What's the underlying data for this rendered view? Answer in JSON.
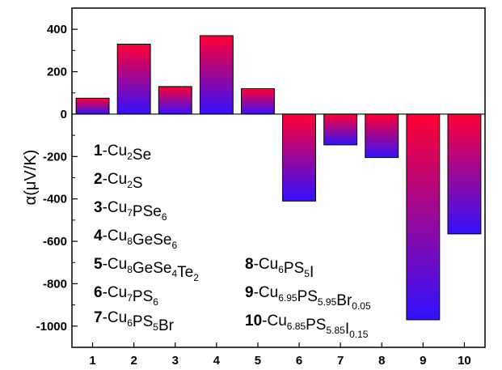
{
  "chart_data": {
    "type": "bar",
    "categories": [
      "1",
      "2",
      "3",
      "4",
      "5",
      "6",
      "7",
      "8",
      "9",
      "10"
    ],
    "values": [
      75,
      330,
      130,
      370,
      120,
      -410,
      -145,
      -205,
      -970,
      -565
    ],
    "ylabel": "α(μV/K)",
    "xlabel": "",
    "ylim": [
      -1100,
      500
    ],
    "yticks": [
      400,
      200,
      0,
      -200,
      -400,
      -600,
      -800,
      -1000
    ],
    "ytick_labels": [
      "400",
      "200",
      "0",
      "-200",
      "-400",
      "-600",
      "-800",
      "-1000"
    ],
    "grid": false,
    "bar_gradient": {
      "top": "#ff0033",
      "bottom": "#3311ff"
    },
    "legend": [
      {
        "id": "1",
        "formula": [
          [
            "Cu",
            ""
          ],
          [
            "2",
            "sub"
          ],
          [
            "Se",
            ""
          ]
        ]
      },
      {
        "id": "2",
        "formula": [
          [
            "Cu",
            ""
          ],
          [
            "2",
            "sub"
          ],
          [
            "S",
            ""
          ]
        ]
      },
      {
        "id": "3",
        "formula": [
          [
            "Cu",
            ""
          ],
          [
            "7",
            "sub"
          ],
          [
            "PSe",
            ""
          ],
          [
            "6",
            "sub"
          ]
        ]
      },
      {
        "id": "4",
        "formula": [
          [
            "Cu",
            ""
          ],
          [
            "8",
            "sub"
          ],
          [
            "GeSe",
            ""
          ],
          [
            "6",
            "sub"
          ]
        ]
      },
      {
        "id": "5",
        "formula": [
          [
            "Cu",
            ""
          ],
          [
            "8",
            "sub"
          ],
          [
            "GeSe",
            ""
          ],
          [
            "4",
            "sub"
          ],
          [
            "Te",
            ""
          ],
          [
            "2",
            "sub"
          ]
        ]
      },
      {
        "id": "6",
        "formula": [
          [
            "Cu",
            ""
          ],
          [
            "7",
            "sub"
          ],
          [
            "PS",
            ""
          ],
          [
            "6",
            "sub"
          ]
        ]
      },
      {
        "id": "7",
        "formula": [
          [
            "Cu",
            ""
          ],
          [
            "6",
            "sub"
          ],
          [
            "PS",
            ""
          ],
          [
            "5",
            "sub"
          ],
          [
            "Br",
            ""
          ]
        ]
      },
      {
        "id": "8",
        "formula": [
          [
            "Cu",
            ""
          ],
          [
            "6",
            "sub"
          ],
          [
            "PS",
            ""
          ],
          [
            "5",
            "sub"
          ],
          [
            "I",
            ""
          ]
        ]
      },
      {
        "id": "9",
        "formula": [
          [
            "Cu",
            ""
          ],
          [
            "6.95",
            "sub"
          ],
          [
            "PS",
            ""
          ],
          [
            "5.95",
            "sub"
          ],
          [
            "Br",
            ""
          ],
          [
            "0.05",
            "sub"
          ]
        ]
      },
      {
        "id": "10",
        "formula": [
          [
            "Cu",
            ""
          ],
          [
            "6.85",
            "sub"
          ],
          [
            "PS",
            ""
          ],
          [
            "5.85",
            "sub"
          ],
          [
            "I",
            ""
          ],
          [
            "0.15",
            "sub"
          ]
        ]
      }
    ]
  }
}
